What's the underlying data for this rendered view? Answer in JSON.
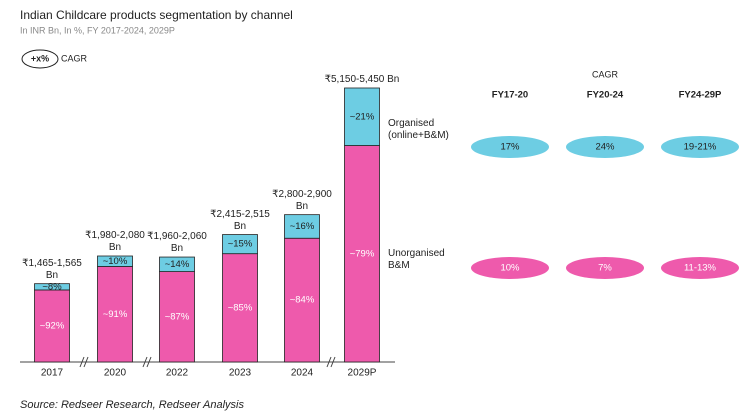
{
  "chart_data": {
    "type": "bar",
    "title": "Indian Childcare products segmentation by channel",
    "subtitle": "In INR Bn, In %, FY 2017-2024, 2029P",
    "cagr_legend": {
      "symbol": "+x%",
      "label": "CAGR"
    },
    "categories": [
      "2017",
      "2020",
      "2022",
      "2023",
      "2024",
      "2029P"
    ],
    "series": [
      {
        "name": "Unorganised B&M",
        "color": "#ee5aac",
        "values": [
          92,
          91,
          87,
          85,
          84,
          79
        ],
        "value_labels": [
          "~92%",
          "~91%",
          "~87%",
          "~85%",
          "~84%",
          "~79%"
        ]
      },
      {
        "name": "Organised (online+B&M)",
        "color": "#6dcde3",
        "values": [
          8,
          10,
          14,
          15,
          16,
          21
        ],
        "value_labels": [
          "~8%",
          "~10%",
          "~14%",
          "~15%",
          "~16%",
          "~21%"
        ]
      }
    ],
    "totals": {
      "ranges": [
        [
          1465,
          1565
        ],
        [
          1980,
          2080
        ],
        [
          1960,
          2060
        ],
        [
          2415,
          2515
        ],
        [
          2800,
          2900
        ],
        [
          5150,
          5450
        ]
      ],
      "labels": [
        "₹1,465-1,565 Bn",
        "₹1,980-2,080 Bn",
        "₹1,960-2,060 Bn",
        "₹2,415-2,515 Bn",
        "₹2,800-2,900 Bn",
        "₹5,150-5,450 Bn"
      ]
    },
    "cagr_table": {
      "header": "CAGR",
      "columns": [
        "FY17-20",
        "FY20-24",
        "FY24-29P"
      ],
      "rows": [
        [
          "10%",
          "7%",
          "11-13%"
        ],
        [
          "17%",
          "24%",
          "19-21%"
        ]
      ]
    },
    "source": "Source: Redseer Research, Redseer Analysis"
  }
}
